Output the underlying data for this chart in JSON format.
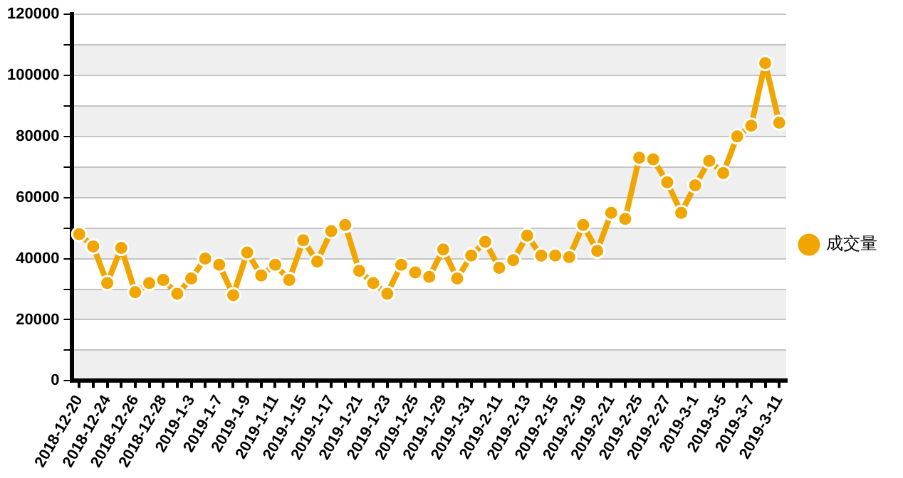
{
  "chart_data": {
    "type": "line",
    "categories": [
      "2018-12-20",
      null,
      "2018-12-24",
      null,
      "2018-12-26",
      null,
      "2018-12-28",
      null,
      "2019-1-3",
      null,
      "2019-1-7",
      null,
      "2019-1-9",
      null,
      "2019-1-11",
      null,
      "2019-1-15",
      null,
      "2019-1-17",
      null,
      "2019-1-21",
      null,
      "2019-1-23",
      null,
      "2019-1-25",
      null,
      "2019-1-29",
      null,
      "2019-1-31",
      null,
      "2019-2-11",
      null,
      "2019-2-13",
      null,
      "2019-2-15",
      null,
      "2019-2-19",
      null,
      "2019-2-21",
      null,
      "2019-2-25",
      null,
      "2019-2-27",
      null,
      "2019-3-1",
      null,
      "2019-3-5",
      null,
      "2019-3-7",
      null,
      "2019-3-11"
    ],
    "series": [
      {
        "name": "成交量",
        "color": "#f0a500",
        "values": [
          48000,
          44000,
          32000,
          43500,
          29000,
          32000,
          33000,
          28500,
          33500,
          40000,
          38000,
          28000,
          42000,
          34500,
          38000,
          33000,
          46000,
          39000,
          49000,
          51000,
          36000,
          32000,
          28500,
          38000,
          35500,
          34000,
          43000,
          33500,
          41000,
          45500,
          37000,
          39500,
          47500,
          41000,
          41000,
          40500,
          51000,
          42500,
          55000,
          53000,
          73000,
          72500,
          65000,
          55000,
          64000,
          72000,
          68000,
          80000,
          83500,
          104000,
          84500
        ]
      }
    ],
    "ylim": [
      0,
      120000
    ],
    "yticks": [
      0,
      {
        "value": 10000,
        "label": null
      },
      20000,
      {
        "value": 30000,
        "label": null
      },
      40000,
      {
        "value": 50000,
        "label": null
      },
      60000,
      {
        "value": 70000,
        "label": null
      },
      80000,
      {
        "value": 90000,
        "label": null
      },
      100000,
      {
        "value": 110000,
        "label": null
      },
      120000
    ],
    "grid": "y",
    "legend": "right",
    "marker": "circle",
    "line_style": "solid"
  }
}
